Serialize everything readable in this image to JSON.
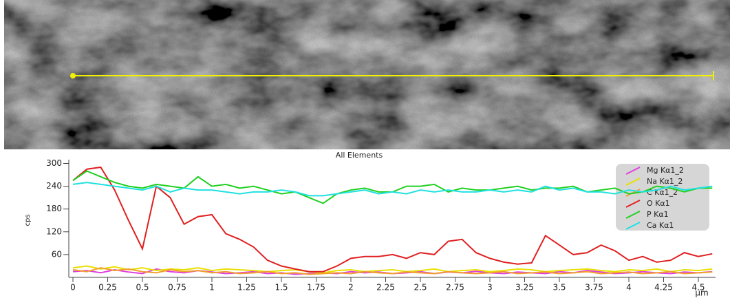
{
  "chart_data": {
    "type": "line",
    "title": "All Elements",
    "y_label": "cps",
    "x_label": "μm",
    "x": [
      0,
      0.1,
      0.2,
      0.3,
      0.4,
      0.5,
      0.6,
      0.7,
      0.8,
      0.9,
      1.0,
      1.1,
      1.2,
      1.3,
      1.4,
      1.5,
      1.6,
      1.7,
      1.8,
      1.9,
      2.0,
      2.1,
      2.2,
      2.3,
      2.4,
      2.5,
      2.6,
      2.7,
      2.8,
      2.9,
      3.0,
      3.1,
      3.2,
      3.3,
      3.4,
      3.5,
      3.6,
      3.7,
      3.8,
      3.9,
      4.0,
      4.1,
      4.2,
      4.3,
      4.4,
      4.5,
      4.6
    ],
    "series": [
      {
        "name": "Mg Kα1_2",
        "color": "#e040e0",
        "values": [
          15,
          18,
          12,
          20,
          14,
          10,
          22,
          15,
          12,
          18,
          14,
          10,
          12,
          15,
          10,
          12,
          8,
          10,
          12,
          10,
          15,
          12,
          14,
          10,
          12,
          15,
          10,
          14,
          12,
          16,
          12,
          10,
          14,
          12,
          10,
          15,
          12,
          18,
          14,
          10,
          12,
          15,
          12,
          10,
          14,
          12,
          15
        ]
      },
      {
        "name": "Na Kα1_2",
        "color": "#e8e000",
        "values": [
          25,
          30,
          22,
          28,
          20,
          25,
          18,
          22,
          20,
          25,
          18,
          22,
          20,
          18,
          15,
          18,
          20,
          15,
          12,
          18,
          20,
          15,
          18,
          20,
          15,
          18,
          22,
          15,
          18,
          20,
          15,
          18,
          22,
          20,
          15,
          18,
          20,
          22,
          18,
          15,
          20,
          18,
          22,
          15,
          20,
          18,
          22
        ]
      },
      {
        "name": "C Kα1_2",
        "color": "#f0a030",
        "values": [
          20,
          15,
          25,
          18,
          22,
          15,
          12,
          20,
          15,
          18,
          12,
          15,
          10,
          12,
          15,
          10,
          12,
          8,
          10,
          12,
          10,
          15,
          12,
          10,
          14,
          12,
          10,
          15,
          12,
          10,
          12,
          15,
          10,
          12,
          14,
          10,
          12,
          15,
          10,
          12,
          14,
          10,
          12,
          15,
          10,
          12,
          14
        ]
      },
      {
        "name": "O Kα1",
        "color": "#e02020",
        "values": [
          255,
          285,
          290,
          230,
          150,
          75,
          240,
          210,
          140,
          160,
          165,
          115,
          100,
          80,
          45,
          30,
          22,
          15,
          15,
          30,
          50,
          55,
          55,
          60,
          50,
          65,
          60,
          95,
          100,
          65,
          50,
          40,
          35,
          38,
          110,
          85,
          60,
          65,
          85,
          70,
          45,
          55,
          40,
          45,
          65,
          55,
          62
        ]
      },
      {
        "name": "P Kα1",
        "color": "#20d020",
        "values": [
          255,
          280,
          265,
          250,
          240,
          235,
          245,
          240,
          235,
          265,
          240,
          245,
          235,
          240,
          230,
          220,
          225,
          210,
          195,
          220,
          230,
          235,
          225,
          225,
          240,
          240,
          245,
          225,
          235,
          230,
          230,
          235,
          240,
          230,
          235,
          235,
          240,
          225,
          230,
          235,
          220,
          225,
          240,
          235,
          225,
          235,
          235
        ]
      },
      {
        "name": "Ca Kα1",
        "color": "#20e0e0",
        "values": [
          245,
          250,
          245,
          240,
          235,
          230,
          240,
          225,
          235,
          230,
          230,
          225,
          220,
          225,
          225,
          230,
          225,
          215,
          215,
          220,
          225,
          230,
          220,
          225,
          220,
          230,
          225,
          230,
          225,
          225,
          230,
          225,
          230,
          225,
          240,
          230,
          235,
          225,
          225,
          220,
          230,
          225,
          230,
          240,
          230,
          235,
          240
        ]
      }
    ],
    "xlim": [
      0,
      4.6
    ],
    "ylim": [
      0,
      310
    ],
    "xticks": [
      0,
      0.25,
      0.5,
      0.75,
      1,
      1.25,
      1.5,
      1.75,
      2,
      2.25,
      2.5,
      2.75,
      3,
      3.25,
      3.5,
      3.75,
      4,
      4.25,
      4.5
    ],
    "yticks": [
      60,
      120,
      180,
      240,
      300
    ]
  }
}
